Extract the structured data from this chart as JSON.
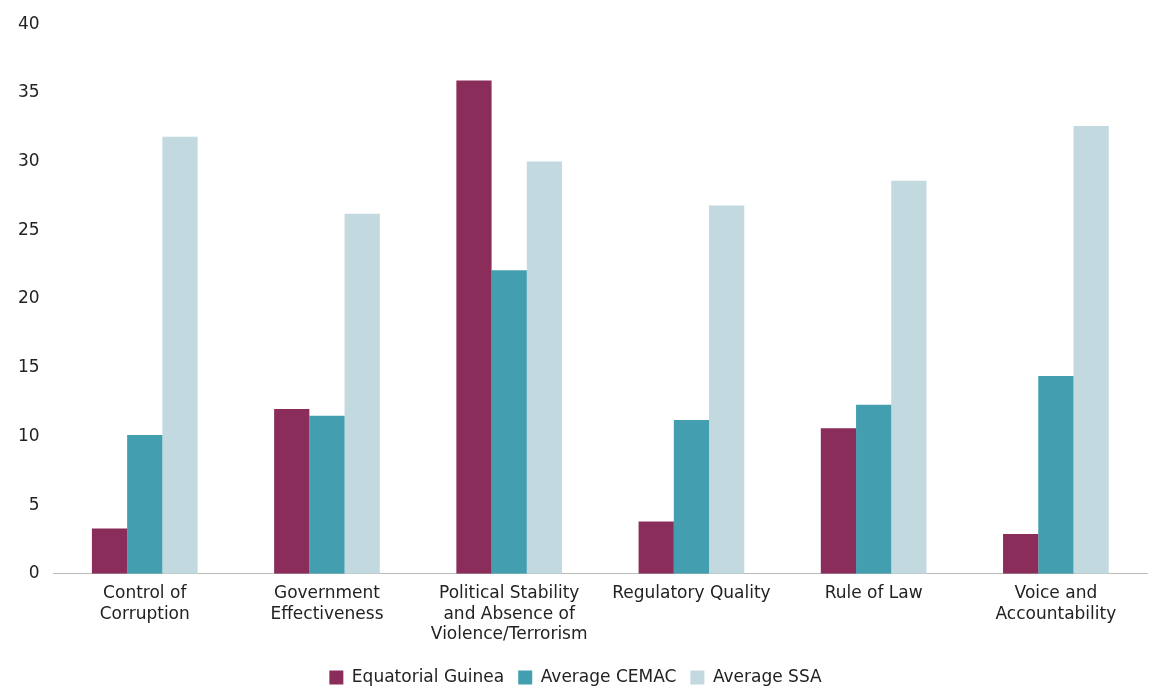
{
  "chart_data": {
    "type": "bar",
    "categories": [
      "Control of Corruption",
      "Government Effectiveness",
      "Political Stability and Absence of Violence/Terrorism",
      "Regulatory Quality",
      "Rule of Law",
      "Voice and Accountability"
    ],
    "series": [
      {
        "name": "Equatorial Guinea",
        "color": "#8b2d5a",
        "values": [
          3.3,
          12.0,
          35.9,
          3.8,
          10.6,
          2.9
        ]
      },
      {
        "name": "Average CEMAC",
        "color": "#439fb0",
        "values": [
          10.1,
          11.5,
          22.1,
          11.2,
          12.3,
          14.4
        ]
      },
      {
        "name": "Average SSA",
        "color": "#c1d9df",
        "values": [
          31.8,
          26.2,
          30.0,
          26.8,
          28.6,
          32.6
        ]
      }
    ],
    "ylim": [
      0,
      40
    ],
    "yticks": [
      0,
      5,
      10,
      15,
      20,
      25,
      30,
      35,
      40
    ],
    "grid": false,
    "legend": "bottom"
  }
}
